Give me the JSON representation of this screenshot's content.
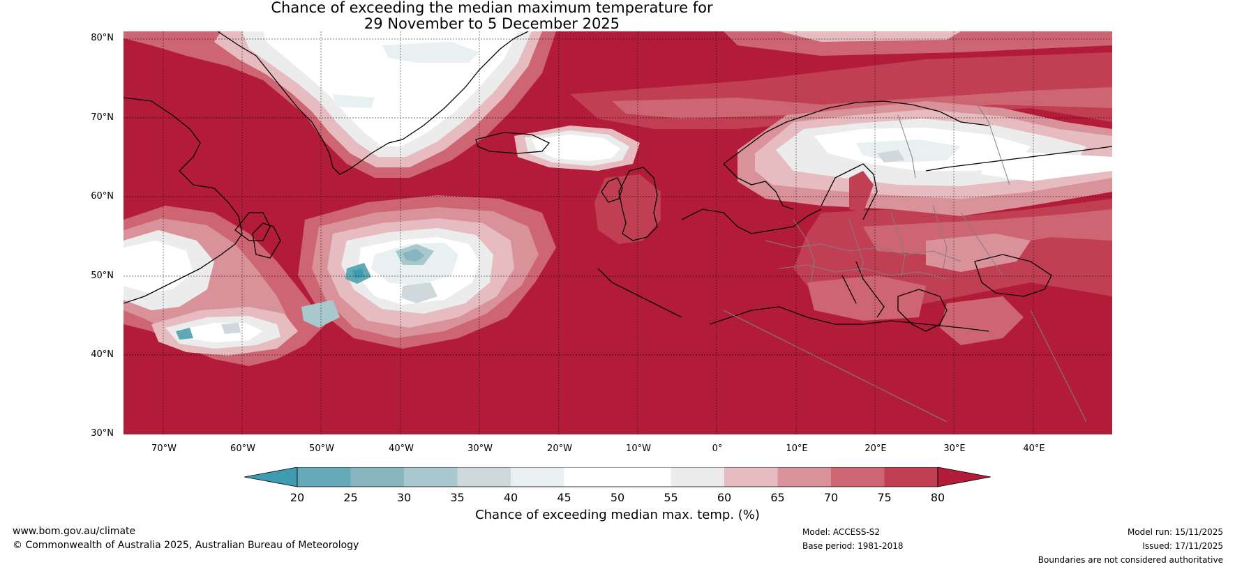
{
  "title": {
    "line1": "Chance of exceeding the median maximum temperature for",
    "line2": "29 November to 5 December 2025"
  },
  "map": {
    "lat_labels": [
      "80°N",
      "70°N",
      "60°N",
      "50°N",
      "40°N",
      "30°N"
    ],
    "lon_labels": [
      "70°W",
      "60°W",
      "50°W",
      "40°W",
      "30°W",
      "20°W",
      "10°W",
      "0°",
      "10°E",
      "20°E",
      "30°E",
      "40°E"
    ],
    "lon_range_deg": [
      -75,
      50
    ],
    "lat_range_deg": [
      30,
      81
    ],
    "colors": {
      "ocean_high": "#b21c39",
      "c75_80": "#c13f53",
      "c70_75": "#cd6672",
      "c65_70": "#d9929a",
      "c60_65": "#e6bcc0",
      "c55_60": "#ececec",
      "c45_55": "#ffffff",
      "c40_45": "#e9f0f2",
      "c35_40": "#cfd9dc",
      "c30_35": "#a9c8cd",
      "c25_30": "#88b5c0",
      "c20_25": "#5fa8b6",
      "lt20": "#3f9cb0",
      "coast": "#000000",
      "border": "#808080"
    }
  },
  "colorbar": {
    "ticks": [
      "20",
      "25",
      "30",
      "35",
      "40",
      "45",
      "50",
      "55",
      "60",
      "65",
      "70",
      "75",
      "80"
    ],
    "colors": [
      "#3f9cb0",
      "#66a9b8",
      "#88b5c0",
      "#a9c8cd",
      "#cfd9dc",
      "#e9f0f2",
      "#ffffff",
      "#ffffff",
      "#ececec",
      "#e6bcc0",
      "#d9929a",
      "#cd6672",
      "#c13f53",
      "#b21c39"
    ],
    "label": "Chance of exceeding median max. temp. (%)"
  },
  "footer": {
    "website": "www.bom.gov.au/climate",
    "copyright": "© Commonwealth of Australia 2025, Australian Bureau of Meteorology",
    "model": "Model: ACCESS-S2",
    "base_period": "Base period: 1981-2018",
    "model_run": "Model run: 15/11/2025",
    "issued": "Issued: 17/11/2025",
    "disclaimer": "Boundaries are not considered authoritative"
  }
}
